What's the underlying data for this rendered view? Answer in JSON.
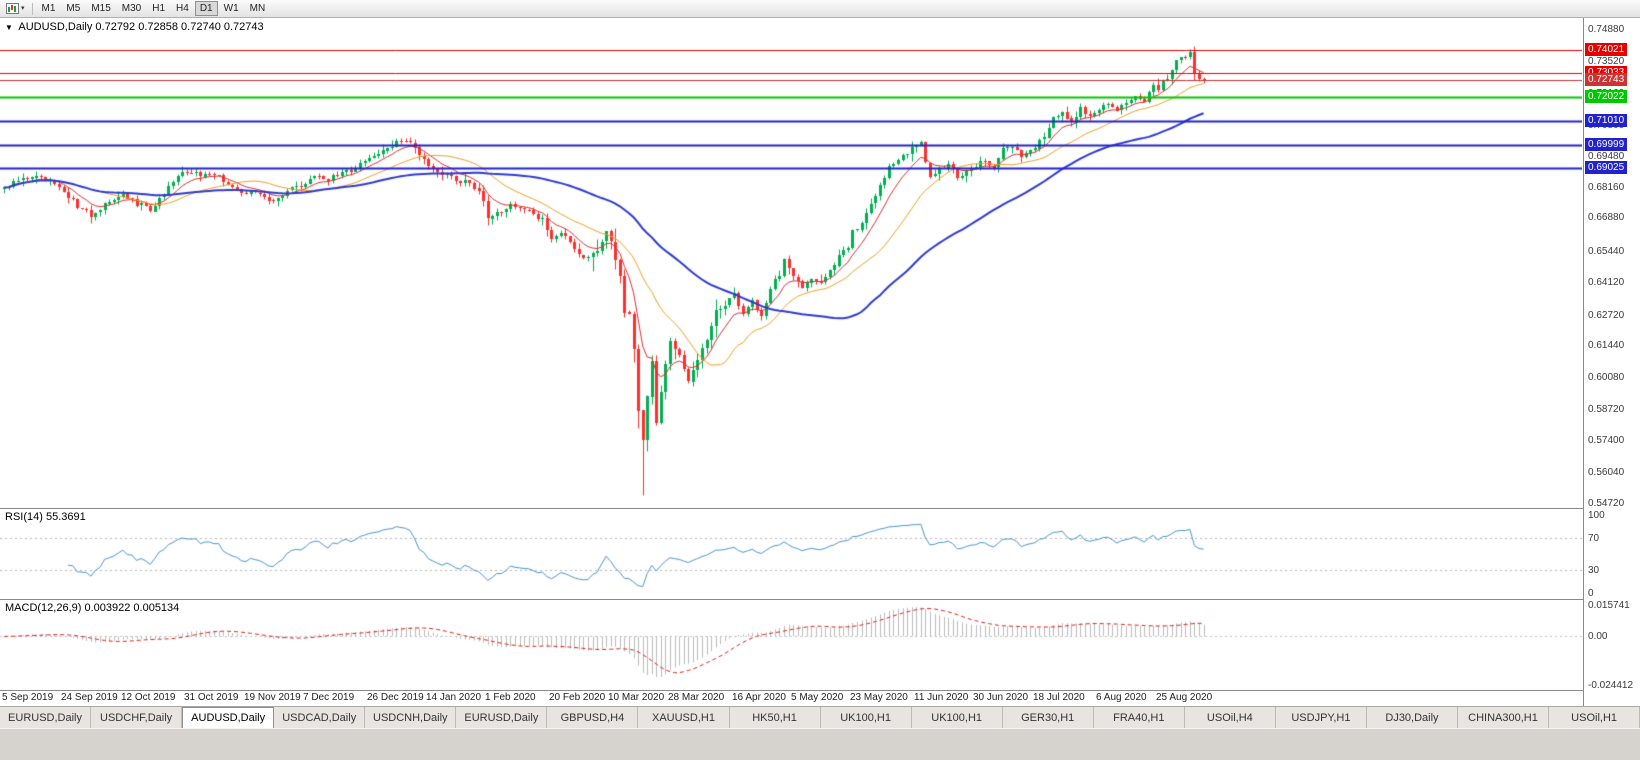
{
  "toolbar": {
    "timeframes": [
      "M1",
      "M5",
      "M15",
      "M30",
      "H1",
      "H4",
      "D1",
      "W1",
      "MN"
    ],
    "active_timeframe": "D1"
  },
  "icons": {
    "corner": "▼",
    "caret": "▾"
  },
  "chart": {
    "info_symbol": "AUDUSD,Daily",
    "info_ohlc": "0.72792 0.72858 0.72740 0.72743"
  },
  "chart_data": {
    "type": "candlestick",
    "symbol": "AUDUSD",
    "timeframe": "Daily",
    "open": "0.72792",
    "high": "0.72858",
    "low": "0.72740",
    "close": "0.72743",
    "candles_count": 264,
    "price_min": 0.5472,
    "price_max": 0.7488,
    "price_ticks": [
      "0.74880",
      "0.73520",
      "0.72160",
      "0.70800",
      "0.69480",
      "0.68160",
      "0.66880",
      "0.65440",
      "0.64120",
      "0.62720",
      "0.61440",
      "0.60080",
      "0.58720",
      "0.57400",
      "0.56040",
      "0.54720"
    ],
    "candle_up_color": "#00b050",
    "candle_down_color": "#ff2e2e",
    "close_anchors": [
      [
        0,
        0.6816
      ],
      [
        4,
        0.6852
      ],
      [
        8,
        0.6866
      ],
      [
        11,
        0.683
      ],
      [
        13,
        0.6797
      ],
      [
        16,
        0.6742
      ],
      [
        19,
        0.6702
      ],
      [
        21,
        0.673
      ],
      [
        24,
        0.676
      ],
      [
        26,
        0.6788
      ],
      [
        29,
        0.6752
      ],
      [
        32,
        0.6723
      ],
      [
        35,
        0.68
      ],
      [
        38,
        0.686
      ],
      [
        40,
        0.6892
      ],
      [
        43,
        0.6862
      ],
      [
        46,
        0.6878
      ],
      [
        49,
        0.6838
      ],
      [
        51,
        0.6812
      ],
      [
        53,
        0.6795
      ],
      [
        56,
        0.6788
      ],
      [
        59,
        0.6763
      ],
      [
        61,
        0.6782
      ],
      [
        63,
        0.6812
      ],
      [
        66,
        0.6838
      ],
      [
        69,
        0.6866
      ],
      [
        71,
        0.6854
      ],
      [
        74,
        0.6878
      ],
      [
        77,
        0.6908
      ],
      [
        80,
        0.6942
      ],
      [
        83,
        0.6982
      ],
      [
        86,
        0.7008
      ],
      [
        88,
        0.7021
      ],
      [
        90,
        0.6992
      ],
      [
        93,
        0.6904
      ],
      [
        96,
        0.6878
      ],
      [
        99,
        0.6848
      ],
      [
        102,
        0.6836
      ],
      [
        104,
        0.6806
      ],
      [
        106,
        0.6693
      ],
      [
        109,
        0.6718
      ],
      [
        112,
        0.6744
      ],
      [
        115,
        0.6712
      ],
      [
        118,
        0.6682
      ],
      [
        120,
        0.6608
      ],
      [
        122,
        0.6618
      ],
      [
        124,
        0.6592
      ],
      [
        126,
        0.6542
      ],
      [
        128,
        0.6512
      ],
      [
        130,
        0.6556
      ],
      [
        132,
        0.6636
      ],
      [
        133,
        0.658
      ],
      [
        135,
        0.6445
      ],
      [
        136,
        0.6295
      ],
      [
        137,
        0.6285
      ],
      [
        138,
        0.6125
      ],
      [
        139,
        0.5875
      ],
      [
        140,
        0.5741
      ],
      [
        141,
        0.5928
      ],
      [
        142,
        0.6075
      ],
      [
        143,
        0.5818
      ],
      [
        144,
        0.5955
      ],
      [
        146,
        0.6165
      ],
      [
        148,
        0.6098
      ],
      [
        150,
        0.5988
      ],
      [
        152,
        0.6088
      ],
      [
        154,
        0.6168
      ],
      [
        156,
        0.6288
      ],
      [
        158,
        0.6318
      ],
      [
        160,
        0.636
      ],
      [
        162,
        0.6278
      ],
      [
        164,
        0.6338
      ],
      [
        166,
        0.6268
      ],
      [
        168,
        0.6388
      ],
      [
        170,
        0.6448
      ],
      [
        171,
        0.6508
      ],
      [
        173,
        0.6432
      ],
      [
        175,
        0.6398
      ],
      [
        177,
        0.6438
      ],
      [
        179,
        0.6412
      ],
      [
        181,
        0.6458
      ],
      [
        183,
        0.6528
      ],
      [
        185,
        0.6565
      ],
      [
        186,
        0.6628
      ],
      [
        188,
        0.6665
      ],
      [
        190,
        0.6748
      ],
      [
        192,
        0.6828
      ],
      [
        194,
        0.6898
      ],
      [
        196,
        0.6938
      ],
      [
        198,
        0.6968
      ],
      [
        200,
        0.6996
      ],
      [
        201,
        0.7008
      ],
      [
        203,
        0.6858
      ],
      [
        205,
        0.6898
      ],
      [
        207,
        0.6928
      ],
      [
        209,
        0.6858
      ],
      [
        211,
        0.6878
      ],
      [
        213,
        0.6902
      ],
      [
        215,
        0.6938
      ],
      [
        217,
        0.6898
      ],
      [
        219,
        0.6978
      ],
      [
        221,
        0.6998
      ],
      [
        223,
        0.6958
      ],
      [
        226,
        0.6994
      ],
      [
        228,
        0.7038
      ],
      [
        230,
        0.7108
      ],
      [
        232,
        0.7148
      ],
      [
        234,
        0.7098
      ],
      [
        236,
        0.7158
      ],
      [
        238,
        0.7118
      ],
      [
        240,
        0.7142
      ],
      [
        242,
        0.7178
      ],
      [
        244,
        0.7148
      ],
      [
        246,
        0.717
      ],
      [
        248,
        0.7218
      ],
      [
        250,
        0.7188
      ],
      [
        252,
        0.7258
      ],
      [
        253,
        0.7238
      ],
      [
        255,
        0.7288
      ],
      [
        257,
        0.7362
      ],
      [
        259,
        0.7375
      ],
      [
        260,
        0.7398
      ],
      [
        261,
        0.7308
      ],
      [
        262,
        0.7282
      ],
      [
        263,
        0.72743
      ]
    ],
    "wick_overrides": [
      {
        "index": 140,
        "low": 0.551
      },
      {
        "index": 260,
        "high": 0.7407
      }
    ],
    "moving_averages": [
      {
        "period": 8,
        "method": "ema",
        "color": "#d83434",
        "width": 1
      },
      {
        "period": 20,
        "method": "sma",
        "color": "#f0a028",
        "width": 1
      },
      {
        "period": 50,
        "method": "sma",
        "color": "#2e3bd0",
        "width": 2
      }
    ],
    "levels": [
      {
        "value": 0.74021,
        "label": "0.74021",
        "color": "#e60000",
        "width": 1
      },
      {
        "value": 0.73033,
        "label": "0.73033",
        "color": "#e60000",
        "width": 1
      },
      {
        "value": 0.72743,
        "label": "0.72743",
        "color": "#cc3333",
        "width": 1
      },
      {
        "value": 0.72022,
        "label": "0.72022",
        "color": "#00c800",
        "width": 2
      },
      {
        "value": 0.7101,
        "label": "0.71010",
        "color": "#2222cc",
        "width": 2
      },
      {
        "value": 0.69999,
        "label": "0.69999",
        "color": "#2222cc",
        "width": 2
      },
      {
        "value": 0.69025,
        "label": "0.69025",
        "color": "#2222cc",
        "width": 2
      }
    ],
    "x_labels": [
      {
        "label": "5 Sep 2019",
        "index": 0
      },
      {
        "label": "24 Sep 2019",
        "index": 13
      },
      {
        "label": "12 Oct 2019",
        "index": 26
      },
      {
        "label": "31 Oct 2019",
        "index": 40
      },
      {
        "label": "19 Nov 2019",
        "index": 53
      },
      {
        "label": "7 Dec 2019",
        "index": 66
      },
      {
        "label": "26 Dec 2019",
        "index": 80
      },
      {
        "label": "14 Jan 2020",
        "index": 93
      },
      {
        "label": "1 Feb 2020",
        "index": 106
      },
      {
        "label": "20 Feb 2020",
        "index": 120
      },
      {
        "label": "10 Mar 2020",
        "index": 133
      },
      {
        "label": "28 Mar 2020",
        "index": 146
      },
      {
        "label": "16 Apr 2020",
        "index": 160
      },
      {
        "label": "5 May 2020",
        "index": 173
      },
      {
        "label": "23 May 2020",
        "index": 186
      },
      {
        "label": "11 Jun 2020",
        "index": 200
      },
      {
        "label": "30 Jun 2020",
        "index": 213
      },
      {
        "label": "18 Jul 2020",
        "index": 226
      },
      {
        "label": "6 Aug 2020",
        "index": 240
      },
      {
        "label": "25 Aug 2020",
        "index": 253
      }
    ],
    "rsi": {
      "label": "RSI(14) 55.3691",
      "period": 14,
      "color": "#4a96d2",
      "levels": [
        70,
        30
      ],
      "ticks": [
        {
          "v": 100,
          "t": "100"
        },
        {
          "v": 70,
          "t": "70"
        },
        {
          "v": 30,
          "t": "30"
        },
        {
          "v": 0,
          "t": "0"
        }
      ]
    },
    "macd": {
      "label": "MACD(12,26,9) 0.003922 0.005134",
      "fast": 12,
      "slow": 26,
      "signal_period": 9,
      "histogram_color": "#bcbcbc",
      "signal_color": "#e02020",
      "min": -0.024412,
      "max": 0.015741,
      "ticks": [
        {
          "v": 0.015741,
          "t": "0.015741"
        },
        {
          "v": 0,
          "t": "0.00"
        },
        {
          "v": -0.024412,
          "t": "-0.024412"
        }
      ]
    }
  },
  "tabs": {
    "active_index": 2,
    "items": [
      "EURUSD,Daily",
      "USDCHF,Daily",
      "AUDUSD,Daily",
      "USDCAD,Daily",
      "USDCNH,Daily",
      "EURUSD,Daily",
      "GBPUSD,H4",
      "XAUUSD,H1",
      "HK50,H1",
      "UK100,H1",
      "UK100,H1",
      "GER30,H1",
      "FRA40,H1",
      "USOil,H4",
      "USDJPY,H1",
      "DJ30,Daily",
      "CHINA300,H1",
      "USOil,H1"
    ]
  }
}
